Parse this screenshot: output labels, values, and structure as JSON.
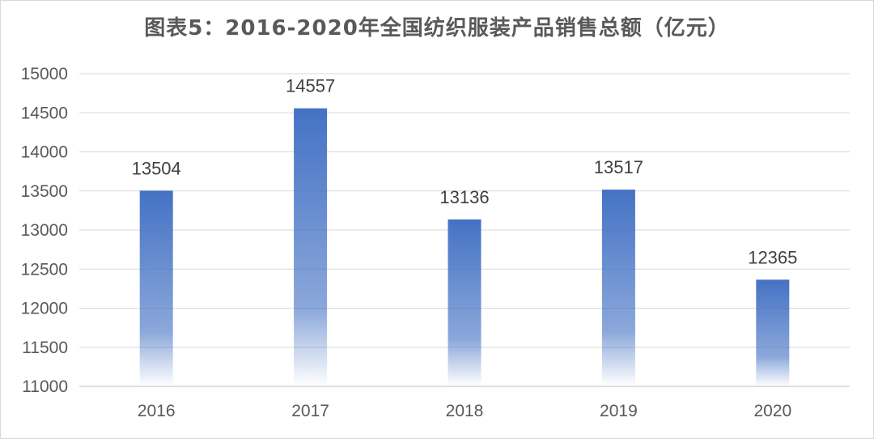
{
  "chart_data": {
    "type": "bar",
    "title": "图表5：2016-2020年全国纺织服装产品销售总额（亿元）",
    "xlabel": "",
    "ylabel": "",
    "categories": [
      "2016",
      "2017",
      "2018",
      "2019",
      "2020"
    ],
    "values": [
      13504,
      14557,
      13136,
      13517,
      12365
    ],
    "data_labels": [
      "13504",
      "14557",
      "13136",
      "13517",
      "12365"
    ],
    "ylim": [
      11000,
      15000
    ],
    "yticks": [
      11000,
      11500,
      12000,
      12500,
      13000,
      13500,
      14000,
      14500,
      15000
    ],
    "ytick_labels": [
      "11000",
      "11500",
      "12000",
      "12500",
      "13000",
      "13500",
      "14000",
      "14500",
      "15000"
    ],
    "grid": true,
    "legend": "none",
    "bar_color": "#4472C4"
  }
}
